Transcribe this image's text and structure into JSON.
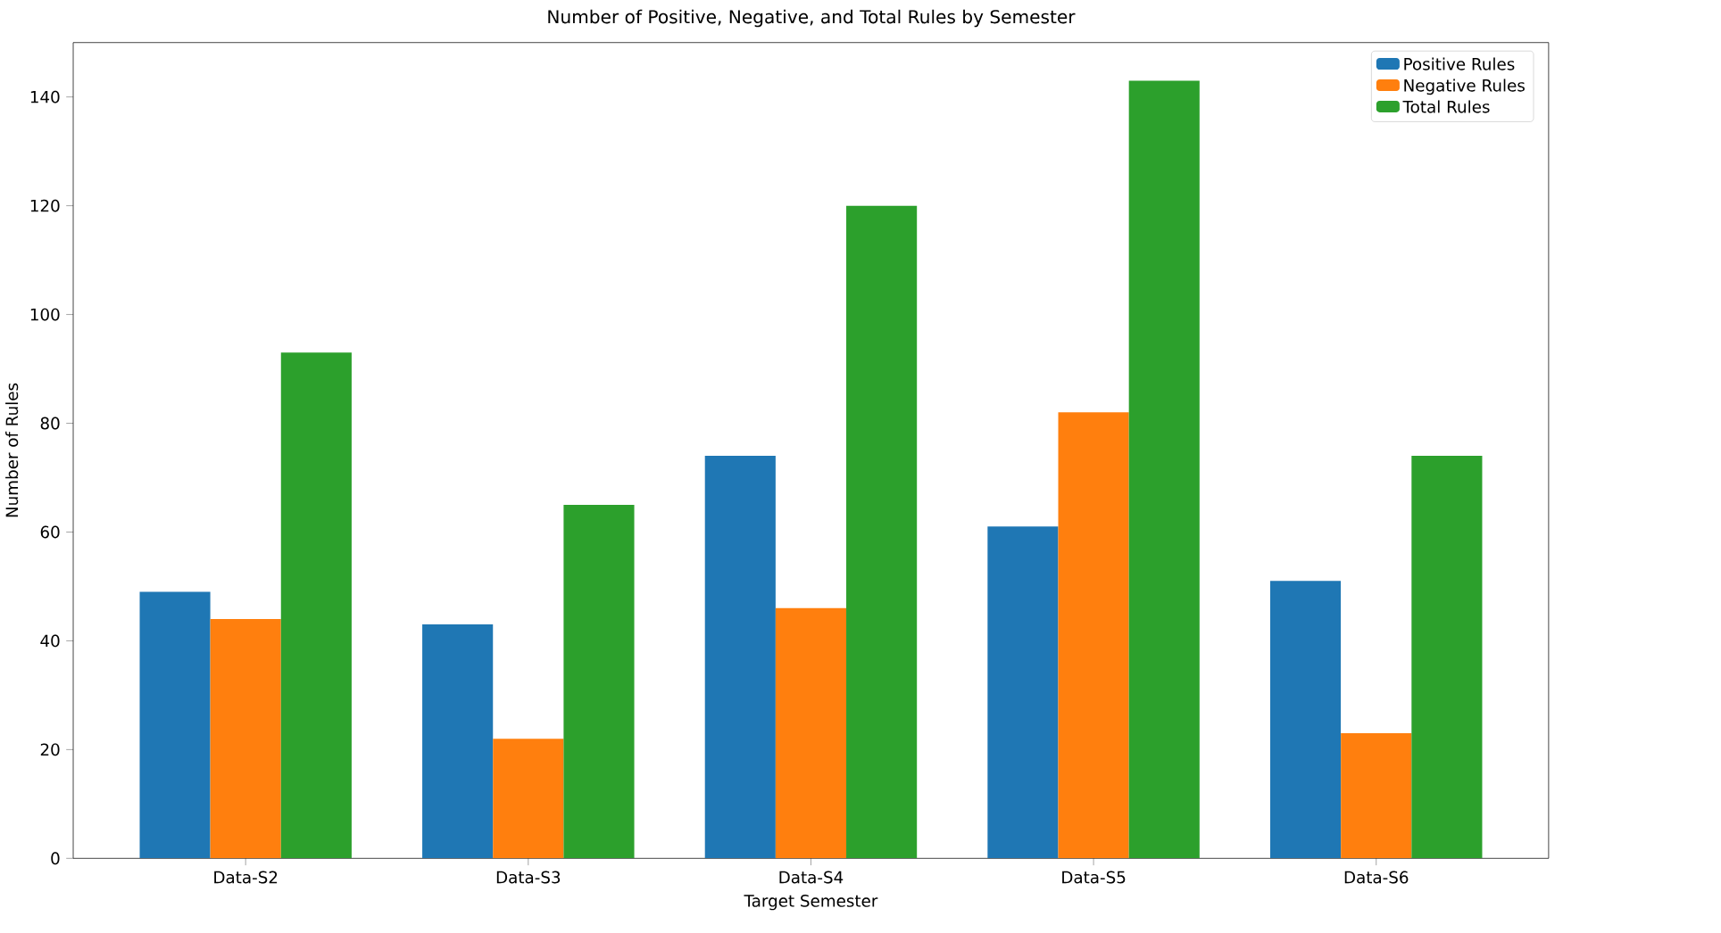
{
  "chart_data": {
    "type": "bar",
    "title": "Number of Positive, Negative, and Total Rules by Semester",
    "xlabel": "Target Semester",
    "ylabel": "Number of Rules",
    "categories": [
      "Data-S2",
      "Data-S3",
      "Data-S4",
      "Data-S5",
      "Data-S6"
    ],
    "series": [
      {
        "name": "Positive Rules",
        "color": "#1f77b4",
        "values": [
          49,
          43,
          74,
          61,
          51
        ]
      },
      {
        "name": "Negative Rules",
        "color": "#ff7f0e",
        "values": [
          44,
          22,
          46,
          82,
          23
        ]
      },
      {
        "name": "Total Rules",
        "color": "#2ca02c",
        "values": [
          93,
          65,
          120,
          143,
          74
        ]
      }
    ],
    "ylim": [
      0,
      150
    ],
    "yticks": [
      0,
      20,
      40,
      60,
      80,
      100,
      120,
      140
    ],
    "grid": false,
    "legend": "top right"
  }
}
